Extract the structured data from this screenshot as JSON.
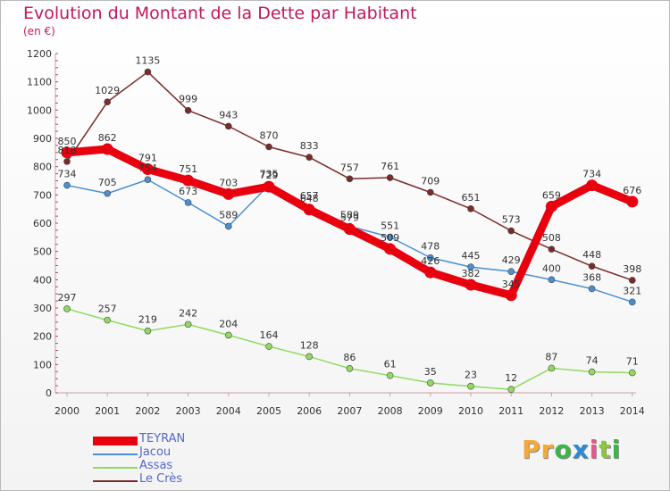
{
  "title": "Evolution du Montant de la Dette par Habitant",
  "subtitle": "(en €)",
  "brand": {
    "text": "Proxiti",
    "letters": [
      "P",
      "r",
      "o",
      "x",
      "i",
      "t",
      "i"
    ],
    "colors": [
      "#f2a93b",
      "#f2a93b",
      "#39b54a",
      "#2f8ad3",
      "#e25a8b",
      "#8cc63f",
      "#39b54a"
    ]
  },
  "chart_data": {
    "type": "line",
    "title": "Evolution du Montant de la Dette par Habitant",
    "subtitle": "(en €)",
    "xlabel": "",
    "ylabel": "",
    "x": [
      "2000",
      "2001",
      "2002",
      "2003",
      "2004",
      "2005",
      "2006",
      "2007",
      "2008",
      "2009",
      "2010",
      "2011",
      "2012",
      "2013",
      "2014"
    ],
    "ylim": [
      0,
      1200
    ],
    "yticks": [
      0,
      100,
      200,
      300,
      400,
      500,
      600,
      700,
      800,
      900,
      1000,
      1100,
      1200
    ],
    "grid": false,
    "legend_position": "bottom-left",
    "series": [
      {
        "name": "TEYRAN",
        "color": "#e8000e",
        "values": [
          850,
          862,
          791,
          751,
          703,
          729,
          648,
          579,
          509,
          426,
          382,
          345,
          659,
          734,
          676
        ]
      },
      {
        "name": "Jacou",
        "color": "#4a8fd0",
        "values": [
          734,
          705,
          754,
          673,
          589,
          735,
          657,
          589,
          551,
          478,
          445,
          429,
          400,
          368,
          321
        ]
      },
      {
        "name": "Assas",
        "color": "#8fdb5f",
        "values": [
          297,
          257,
          219,
          242,
          204,
          164,
          128,
          86,
          61,
          35,
          23,
          12,
          87,
          74,
          71
        ]
      },
      {
        "name": "Le Crès",
        "color": "#7b2a2a",
        "values": [
          818,
          1029,
          1135,
          999,
          943,
          870,
          833,
          757,
          761,
          709,
          651,
          573,
          508,
          448,
          398
        ]
      }
    ]
  }
}
